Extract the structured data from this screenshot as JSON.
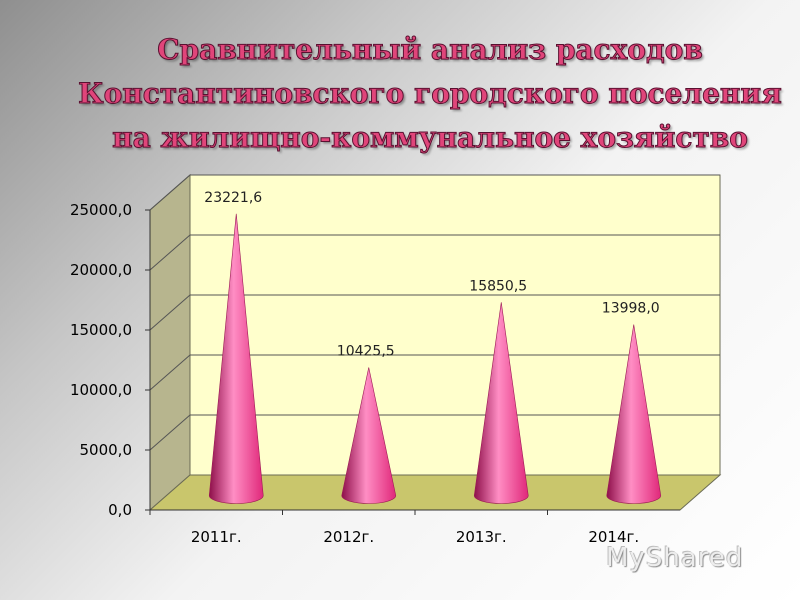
{
  "title": "Сравнительный анализ расходов Константиновского городского поселения на жилищно-коммунальное хозяйство",
  "watermark": "MyShared",
  "colors": {
    "cone": "#e0287a",
    "cone_highlight": "#ff8ec4",
    "cone_shadow": "#8e0f4a",
    "wall": "#ffffcc",
    "floor": "#c9c66c",
    "side_wall": "#b7b58e"
  },
  "chart_data": {
    "type": "bar",
    "bar_shape": "cone-3d",
    "categories": [
      "2011г.",
      "2012г.",
      "2013г.",
      "2014г."
    ],
    "values": [
      23221.6,
      10425.5,
      15850.5,
      13998.0
    ],
    "value_labels": [
      "23221,6",
      "10425,5",
      "15850,5",
      "13998,0"
    ],
    "y_ticks": [
      "0,0",
      "5000,0",
      "10000,0",
      "15000,0",
      "20000,0",
      "25000,0"
    ],
    "ylim": [
      0,
      25000
    ],
    "grid": true,
    "legend": false
  }
}
